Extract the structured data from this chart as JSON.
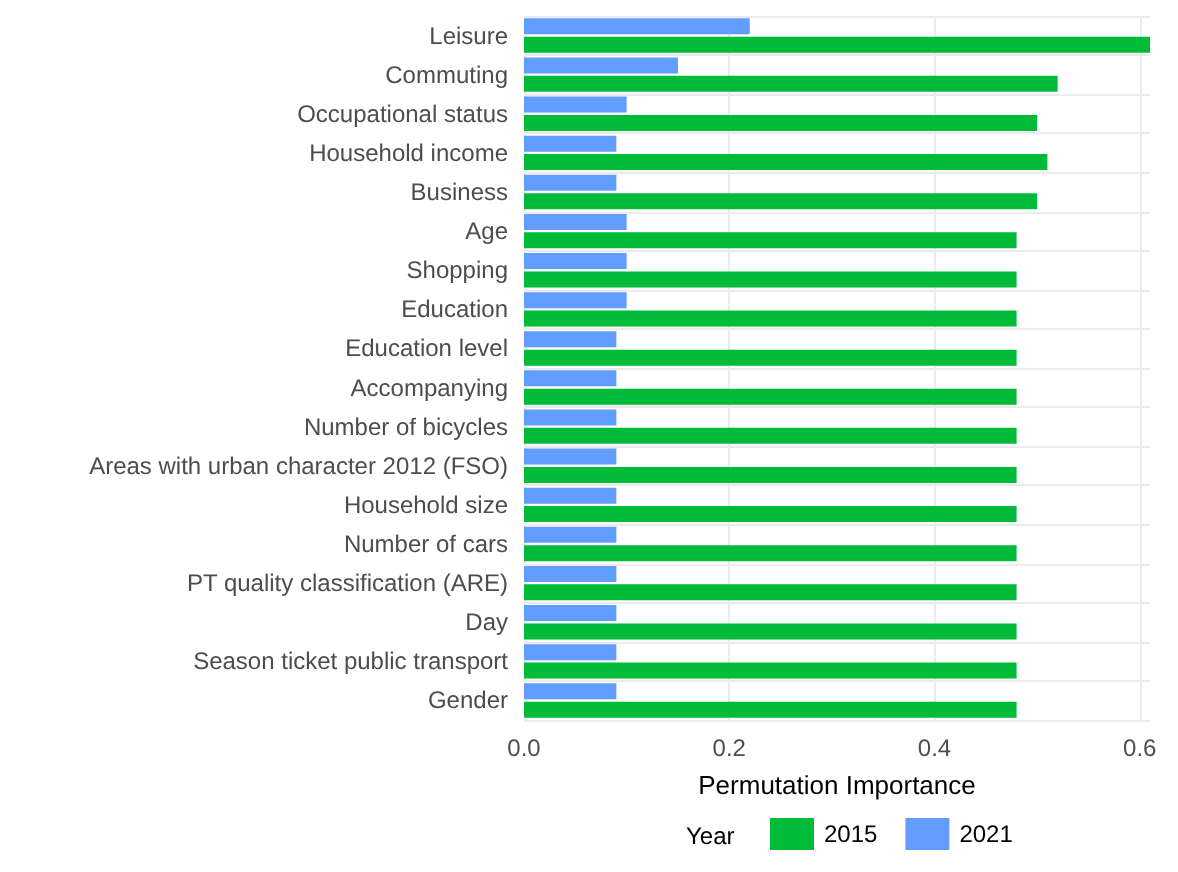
{
  "chart_data": {
    "type": "bar",
    "orientation": "horizontal",
    "xlabel": "Permutation Importance",
    "legend_title": "Year",
    "legend": "bottom",
    "grid": true,
    "categories": [
      "Leisure",
      "Commuting",
      "Occupational status",
      "Household income",
      "Business",
      "Age",
      "Shopping",
      "Education",
      "Education level",
      "Accompanying",
      "Number of bicycles",
      "Areas with urban character 2012 (FSO)",
      "Household size",
      "Number of cars",
      "PT quality classification (ARE)",
      "Day",
      "Season ticket public transport",
      "Gender"
    ],
    "xlim": [
      0,
      0.61
    ],
    "xticks": [
      {
        "value": 0,
        "label": "0.0"
      },
      0.2,
      0.4,
      0.6
    ],
    "series": [
      {
        "name": "2015",
        "color": "#00bb38",
        "values": [
          0.61,
          0.52,
          0.5,
          0.51,
          0.5,
          0.48,
          0.48,
          0.48,
          0.48,
          0.48,
          0.48,
          0.48,
          0.48,
          0.48,
          0.48,
          0.48,
          0.48,
          0.48
        ]
      },
      {
        "name": "2021",
        "color": "#619cff",
        "values": [
          0.22,
          0.15,
          0.1,
          0.09,
          0.09,
          0.1,
          0.1,
          0.1,
          0.09,
          0.09,
          0.09,
          0.09,
          0.09,
          0.09,
          0.09,
          0.09,
          0.09,
          0.09
        ]
      }
    ]
  }
}
